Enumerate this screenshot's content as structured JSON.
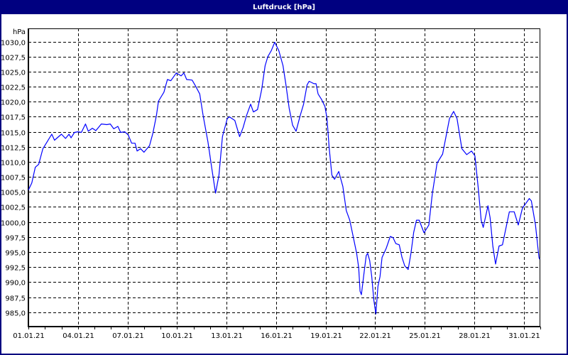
{
  "window": {
    "title": "Luftdruck [hPa]"
  },
  "chart_data": {
    "type": "line",
    "title": "Luftdruck [hPa]",
    "ylabel": "hPa",
    "xlabel": "",
    "ylim": [
      982.6,
      1032.2
    ],
    "xlim": [
      "01.01.21 00:00",
      "01.02.21 00:00"
    ],
    "grid": true,
    "line_color": "#0000FF",
    "y_ticks": [
      985.0,
      987.5,
      990.0,
      992.5,
      995.0,
      997.5,
      1000.0,
      1002.5,
      1005.0,
      1007.5,
      1010.0,
      1012.5,
      1015.0,
      1017.5,
      1020.0,
      1022.5,
      1025.0,
      1027.5,
      1030.0
    ],
    "y_tick_labels": [
      "985,0",
      "987,5",
      "990,0",
      "992,5",
      "995,0",
      "997,5",
      "1000,0",
      "1002,5",
      "1005,0",
      "1007,5",
      "1010,0",
      "1012,5",
      "1015,0",
      "1017,5",
      "1020,0",
      "1022,5",
      "1025,0",
      "1027,5",
      "1030,0"
    ],
    "x_tick_labels": [
      "01.01.21",
      "04.01.21",
      "07.01.21",
      "10.01.21",
      "13.01.21",
      "16.01.21",
      "19.01.21",
      "22.01.21",
      "25.01.21",
      "28.01.21",
      "31.01.21"
    ],
    "series": [
      {
        "x": [
          "01.01.21 00:00",
          "01.01.21 05:00",
          "01.01.21 10:00",
          "01.01.21 15:00",
          "01.01.21 21:00",
          "02.01.21 02:00",
          "02.01.21 10:00",
          "02.01.21 14:00",
          "03.01.21 00:00",
          "03.01.21 06:00",
          "03.01.21 11:00",
          "03.01.21 14:00",
          "03.01.21 19:00",
          "04.01.21 00:00",
          "04.01.21 05:00",
          "04.01.21 11:00",
          "04.01.21 15:00",
          "04.01.21 21:00",
          "05.01.21 02:00",
          "05.01.21 10:00",
          "05.01.21 18:00",
          "05.01.21 23:00",
          "06.01.21 04:00",
          "06.01.21 10:00",
          "06.01.21 14:00",
          "06.01.21 20:00",
          "07.01.21 01:00",
          "07.01.21 06:00",
          "07.01.21 11:00",
          "07.01.21 14:00",
          "07.01.21 19:00",
          "08.01.21 00:00",
          "08.01.21 08:00",
          "08.01.21 13:00",
          "08.01.21 18:00",
          "08.01.21 21:00",
          "09.01.21 05:00",
          "09.01.21 10:00",
          "09.01.21 15:00",
          "09.01.21 23:00",
          "10.01.21 06:00",
          "10.01.21 10:00",
          "10.01.21 14:00",
          "10.01.21 22:00",
          "11.01.21 03:00",
          "11.01.21 09:00",
          "11.01.21 14:00",
          "11.01.21 21:00",
          "12.01.21 03:00",
          "12.01.21 08:00",
          "12.01.21 13:00",
          "12.01.21 18:00",
          "13.01.21 01:00",
          "13.01.21 04:00",
          "13.01.21 12:00",
          "13.01.21 19:00",
          "14.01.21 00:00",
          "14.01.21 05:00",
          "14.01.21 11:00",
          "14.01.21 15:00",
          "14.01.21 21:00",
          "15.01.21 03:00",
          "15.01.21 08:00",
          "15.01.21 12:00",
          "15.01.21 17:00",
          "15.01.21 22:00",
          "16.01.21 04:00",
          "16.01.21 10:00",
          "16.01.21 14:00",
          "16.01.21 19:00",
          "17.01.21 00:00",
          "17.01.21 05:00",
          "17.01.21 11:00",
          "17.01.21 16:00",
          "17.01.21 21:00",
          "18.01.21 00:00",
          "18.01.21 07:00",
          "18.01.21 10:00",
          "18.01.21 13:00",
          "18.01.21 18:00",
          "18.01.21 23:00",
          "19.01.21 02:00",
          "19.01.21 05:00",
          "19.01.21 09:00",
          "19.01.21 13:00",
          "19.01.21 19:00",
          "20.01.21 01:00",
          "20.01.21 06:00",
          "20.01.21 11:00",
          "20.01.21 16:00",
          "20.01.21 21:00",
          "21.01.21 00:00",
          "21.01.21 02:00",
          "21.01.21 04:00",
          "21.01.21 08:00",
          "21.01.21 11:00",
          "21.01.21 13:00",
          "21.01.21 16:00",
          "21.01.21 19:00",
          "21.01.21 22:00",
          "22.01.21 01:00",
          "22.01.21 04:00",
          "22.01.21 07:00",
          "22.01.21 10:00",
          "22.01.21 16:00",
          "22.01.21 22:00",
          "23.01.21 02:00",
          "23.01.21 06:00",
          "23.01.21 11:00",
          "23.01.21 15:00",
          "23.01.21 19:00",
          "24.01.21 00:00",
          "24.01.21 04:00",
          "24.01.21 08:00",
          "24.01.21 12:00",
          "24.01.21 16:00",
          "24.01.21 23:00",
          "25.01.21 06:00",
          "25.01.21 11:00",
          "25.01.21 18:00",
          "26.01.21 02:00",
          "26.01.21 12:00",
          "26.01.21 18:00",
          "26.01.21 23:00",
          "27.01.21 06:00",
          "27.01.21 13:00",
          "27.01.21 20:00",
          "28.01.21 01:00",
          "28.01.21 06:00",
          "28.01.21 10:00",
          "28.01.21 13:00",
          "28.01.21 20:00",
          "28.01.21 23:00",
          "29.01.21 03:00",
          "29.01.21 07:00",
          "29.01.21 12:00",
          "29.01.21 17:00",
          "30.01.21 03:00",
          "30.01.21 10:00",
          "30.01.21 16:00",
          "30.01.21 22:00",
          "31.01.21 08:00",
          "31.01.21 11:00",
          "31.01.21 17:00",
          "31.01.21 22:00",
          "31.01.21 23:00"
        ],
        "y": [
          1005.3,
          1006.5,
          1009.1,
          1009.6,
          1012.2,
          1013.1,
          1014.6,
          1013.6,
          1014.6,
          1013.9,
          1014.6,
          1014.0,
          1014.9,
          1015.0,
          1014.9,
          1016.3,
          1015.1,
          1015.6,
          1015.2,
          1016.3,
          1016.2,
          1016.3,
          1015.5,
          1015.9,
          1014.9,
          1015.0,
          1014.5,
          1013.1,
          1013.1,
          1011.8,
          1012.2,
          1011.6,
          1012.7,
          1014.8,
          1017.7,
          1020.1,
          1021.6,
          1023.7,
          1023.5,
          1024.8,
          1024.3,
          1024.8,
          1023.7,
          1023.6,
          1022.6,
          1021.3,
          1017.7,
          1013.3,
          1008.6,
          1004.8,
          1007.8,
          1014.2,
          1017.2,
          1017.5,
          1016.9,
          1014.2,
          1015.7,
          1017.7,
          1019.6,
          1018.3,
          1018.7,
          1022.0,
          1026.0,
          1027.5,
          1028.5,
          1029.9,
          1028.5,
          1026.0,
          1023.1,
          1018.9,
          1016.1,
          1015.1,
          1017.7,
          1019.6,
          1022.8,
          1023.4,
          1023.0,
          1023.0,
          1021.3,
          1020.4,
          1019.2,
          1017.2,
          1012.5,
          1007.8,
          1007.1,
          1008.4,
          1005.9,
          1001.9,
          1000.3,
          997.6,
          994.8,
          992.4,
          988.5,
          987.9,
          991.7,
          994.4,
          994.8,
          993.6,
          990.9,
          987.0,
          984.7,
          989.3,
          990.9,
          994.1,
          995.6,
          997.6,
          997.4,
          996.4,
          996.2,
          994.1,
          992.7,
          992.1,
          994.8,
          998.3,
          1000.3,
          1000.3,
          998.2,
          999.5,
          1004.7,
          1009.8,
          1011.3,
          1017.2,
          1018.4,
          1017.2,
          1012.2,
          1011.2,
          1011.8,
          1011.0,
          1005.4,
          1000.3,
          999.1,
          1002.7,
          1000.7,
          996.0,
          993.0,
          996.0,
          996.2,
          1001.7,
          1001.7,
          999.5,
          1002.3,
          1003.9,
          1003.5,
          999.5,
          994.1,
          993.8
        ]
      }
    ]
  }
}
